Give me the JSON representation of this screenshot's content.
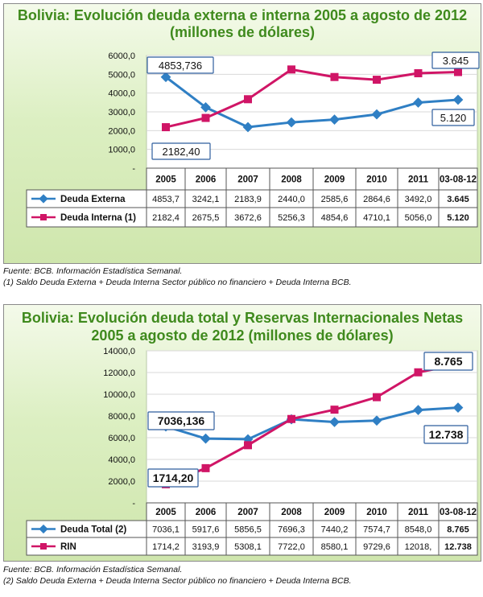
{
  "colors": {
    "title": "#3f8a1d",
    "externa": "#2f7fc4",
    "interna": "#d01566"
  },
  "chart_data": [
    {
      "type": "line",
      "title": "Bolivia: Evolución deuda externa e interna 2005 a agosto de 2012",
      "subtitle": "(millones de dólares)",
      "categories": [
        "2005",
        "2006",
        "2007",
        "2008",
        "2009",
        "2010",
        "2011",
        "03-08-12"
      ],
      "yticks": [
        "6000,0",
        "5000,0",
        "4000,0",
        "3000,0",
        "2000,0",
        "1000,0",
        "-"
      ],
      "ylim": [
        0,
        6000
      ],
      "series": [
        {
          "name": "Deuda Externa",
          "values": [
            4853.7,
            3242.1,
            2183.9,
            2440.0,
            2585.6,
            2864.6,
            3492.0,
            3645
          ],
          "table": [
            "4853,7",
            "3242,1",
            "2183,9",
            "2440,0",
            "2585,6",
            "2864,6",
            "3492,0",
            "3.645"
          ]
        },
        {
          "name": "Deuda Interna (1)",
          "values": [
            2182.4,
            2675.5,
            3672.6,
            5256.3,
            4854.6,
            4710.1,
            5056.0,
            5120
          ],
          "table": [
            "2182,4",
            "2675,5",
            "3672,6",
            "5256,3",
            "4854,6",
            "4710,1",
            "5056,0",
            "5.120"
          ]
        }
      ],
      "annotations": {
        "start_a": "4853,736",
        "start_b": "2182,40",
        "end_a": "3.645",
        "end_b": "5.120"
      },
      "source": "Fuente: BCB. Información Estadística Semanal.",
      "footnote": "(1) Saldo Deuda Externa + Deuda Interna Sector público no financiero  + Deuda Interna BCB."
    },
    {
      "type": "line",
      "title": "Bolivia: Evolución deuda total y  Reservas Internacionales Netas",
      "subtitle": "2005 a agosto de 2012 (millones de dólares)",
      "categories": [
        "2005",
        "2006",
        "2007",
        "2008",
        "2009",
        "2010",
        "2011",
        "03-08-12"
      ],
      "yticks": [
        "14000,0",
        "12000,0",
        "10000,0",
        "8000,0",
        "6000,0",
        "4000,0",
        "2000,0",
        "-"
      ],
      "ylim": [
        0,
        14000
      ],
      "series": [
        {
          "name": "Deuda Total (2)",
          "values": [
            7036.1,
            5917.6,
            5856.5,
            7696.3,
            7440.2,
            7574.7,
            8548.0,
            8765
          ],
          "table": [
            "7036,1",
            "5917,6",
            "5856,5",
            "7696,3",
            "7440,2",
            "7574,7",
            "8548,0",
            "8.765"
          ]
        },
        {
          "name": "RIN",
          "values": [
            1714.2,
            3193.9,
            5308.1,
            7722.0,
            8580.1,
            9729.6,
            12018,
            12738
          ],
          "table": [
            "1714,2",
            "3193,9",
            "5308,1",
            "7722,0",
            "8580,1",
            "9729,6",
            "12018,",
            "12.738"
          ]
        }
      ],
      "annotations": {
        "start_a": "7036,136",
        "start_b": "1714,20",
        "end_a": "8.765",
        "end_b": "12.738"
      },
      "source": "Fuente: BCB. Información Estadística Semanal.",
      "footnote": "(2) Saldo Deuda Externa + Deuda Interna Sector público no financiero  + Deuda Interna BCB."
    }
  ]
}
